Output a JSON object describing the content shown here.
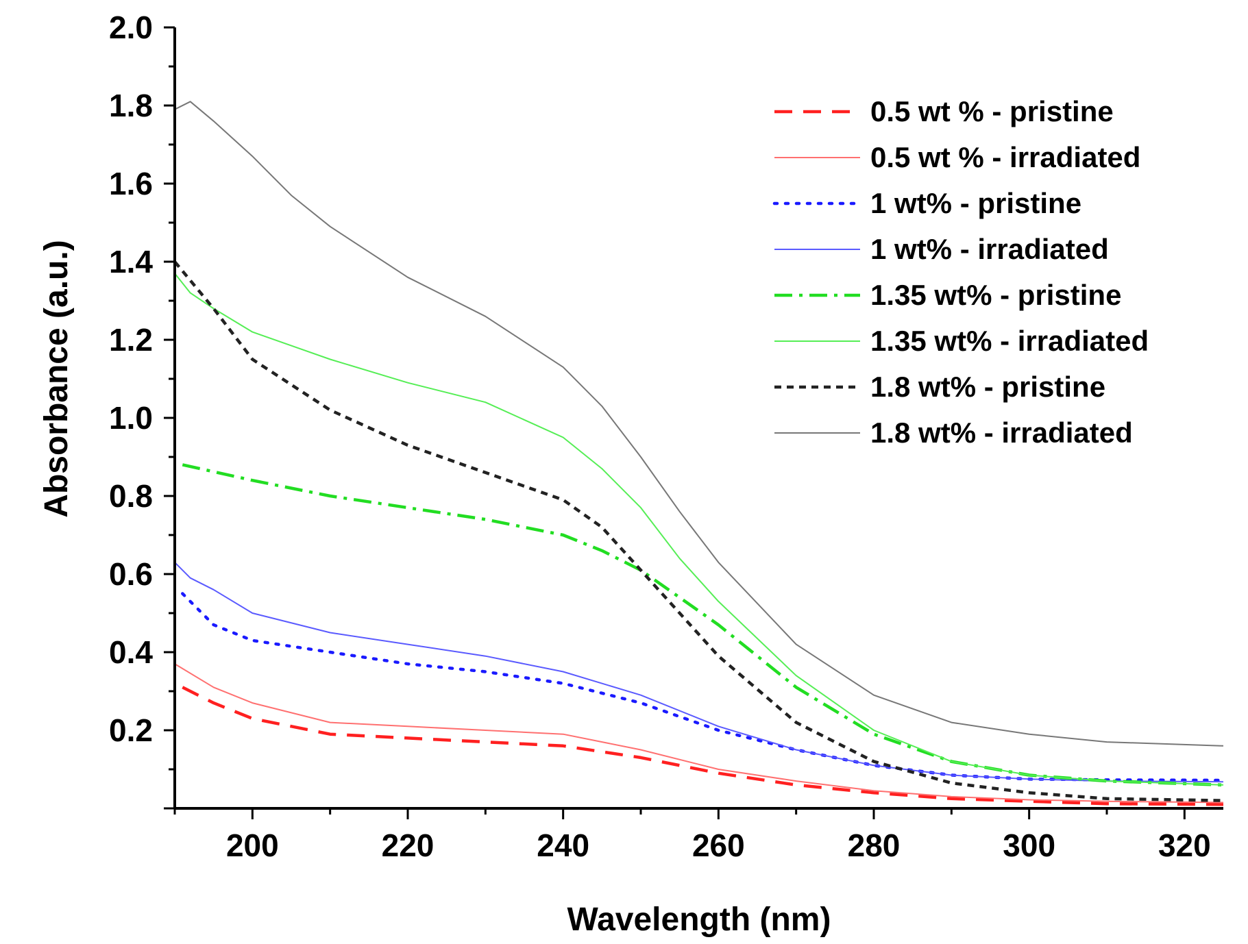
{
  "chart_data": {
    "type": "line",
    "title": "",
    "xlabel": "Wavelength (nm)",
    "ylabel": "Absorbance (a.u.)",
    "xlim": [
      190,
      325
    ],
    "ylim": [
      0,
      2.0
    ],
    "x_ticks": [
      200,
      220,
      240,
      260,
      280,
      300,
      320
    ],
    "x_tick_labels": [
      "200",
      "220",
      "240",
      "260",
      "280",
      "300",
      "320"
    ],
    "y_ticks": [
      0.2,
      0.4,
      0.6,
      0.8,
      1.0,
      1.2,
      1.4,
      1.6,
      1.8,
      2.0
    ],
    "y_tick_labels": [
      "0.2",
      "0.4",
      "0.6",
      "0.8",
      "1.0",
      "1.2",
      "1.4",
      "1.6",
      "1.8",
      "2.0"
    ],
    "grid": false,
    "legend_position": "top-right",
    "series": [
      {
        "name": "0.5 wt % - pristine",
        "color": "#ff2020",
        "style": "dashed",
        "x": [
          191,
          195,
          200,
          210,
          220,
          230,
          240,
          250,
          260,
          270,
          280,
          290,
          300,
          310,
          325
        ],
        "y": [
          0.31,
          0.27,
          0.23,
          0.19,
          0.18,
          0.17,
          0.16,
          0.13,
          0.09,
          0.06,
          0.04,
          0.025,
          0.018,
          0.012,
          0.01
        ]
      },
      {
        "name": "0.5 wt % - irradiated",
        "color": "#ff7070",
        "style": "solid",
        "x": [
          190,
          195,
          200,
          210,
          220,
          230,
          240,
          250,
          260,
          270,
          280,
          290,
          300,
          310,
          325
        ],
        "y": [
          0.37,
          0.31,
          0.27,
          0.22,
          0.21,
          0.2,
          0.19,
          0.15,
          0.1,
          0.07,
          0.045,
          0.03,
          0.022,
          0.018,
          0.015
        ]
      },
      {
        "name": "1 wt% - pristine",
        "color": "#1a1aff",
        "style": "dotted",
        "x": [
          191,
          195,
          200,
          210,
          220,
          230,
          240,
          250,
          260,
          270,
          280,
          290,
          300,
          310,
          325
        ],
        "y": [
          0.55,
          0.47,
          0.43,
          0.4,
          0.37,
          0.35,
          0.32,
          0.27,
          0.2,
          0.15,
          0.11,
          0.085,
          0.075,
          0.073,
          0.072
        ]
      },
      {
        "name": "1 wt% - irradiated",
        "color": "#5a5aff",
        "style": "solid",
        "x": [
          190,
          192,
          195,
          200,
          210,
          220,
          230,
          240,
          250,
          260,
          270,
          280,
          290,
          300,
          310,
          325
        ],
        "y": [
          0.63,
          0.59,
          0.56,
          0.5,
          0.45,
          0.42,
          0.39,
          0.35,
          0.29,
          0.21,
          0.15,
          0.11,
          0.085,
          0.075,
          0.07,
          0.068
        ]
      },
      {
        "name": "1.35 wt% - pristine",
        "color": "#22dd22",
        "style": "dashdot",
        "x": [
          191,
          200,
          210,
          220,
          230,
          240,
          245,
          250,
          260,
          270,
          280,
          290,
          300,
          310,
          325
        ],
        "y": [
          0.88,
          0.84,
          0.8,
          0.77,
          0.74,
          0.7,
          0.66,
          0.61,
          0.47,
          0.31,
          0.19,
          0.12,
          0.085,
          0.07,
          0.06
        ]
      },
      {
        "name": "1.35 wt% - irradiated",
        "color": "#55ee55",
        "style": "solid",
        "x": [
          190,
          192,
          195,
          200,
          210,
          220,
          230,
          240,
          245,
          250,
          255,
          260,
          270,
          280,
          290,
          300,
          310,
          325
        ],
        "y": [
          1.37,
          1.32,
          1.28,
          1.22,
          1.15,
          1.09,
          1.04,
          0.95,
          0.87,
          0.77,
          0.64,
          0.53,
          0.34,
          0.2,
          0.12,
          0.085,
          0.07,
          0.06
        ]
      },
      {
        "name": "1.8 wt% - pristine",
        "color": "#222222",
        "style": "shortdash",
        "x": [
          190,
          195,
          200,
          210,
          220,
          230,
          240,
          245,
          250,
          255,
          260,
          270,
          280,
          290,
          300,
          310,
          325
        ],
        "y": [
          1.4,
          1.28,
          1.15,
          1.02,
          0.93,
          0.86,
          0.79,
          0.72,
          0.61,
          0.5,
          0.39,
          0.22,
          0.12,
          0.065,
          0.04,
          0.025,
          0.02
        ]
      },
      {
        "name": "1.8 wt% - irradiated",
        "color": "#777777",
        "style": "solid",
        "x": [
          190,
          192,
          195,
          200,
          205,
          210,
          220,
          230,
          240,
          245,
          250,
          255,
          260,
          270,
          280,
          290,
          300,
          310,
          325
        ],
        "y": [
          1.79,
          1.81,
          1.76,
          1.67,
          1.57,
          1.49,
          1.36,
          1.26,
          1.13,
          1.03,
          0.9,
          0.76,
          0.63,
          0.42,
          0.29,
          0.22,
          0.19,
          0.17,
          0.16
        ]
      }
    ]
  }
}
